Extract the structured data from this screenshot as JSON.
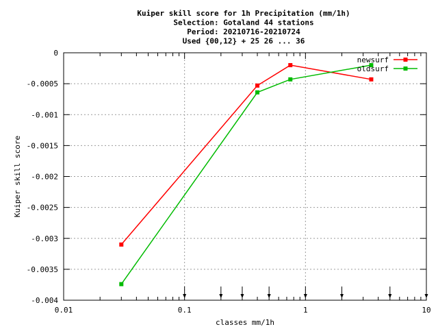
{
  "chart_data": {
    "type": "line",
    "title": [
      "Kuiper skill score  for 1h Precipitation (mm/1h)",
      "Selection: Gotaland     44 stations",
      "Period: 20210716-20210724",
      "Used {00,12} + 25 26 ... 36"
    ],
    "xlabel": "classes mm/1h",
    "ylabel": "Kuiper skill score",
    "xscale": "log",
    "xlim": [
      0.01,
      10
    ],
    "ylim": [
      -0.004,
      0
    ],
    "xticks": [
      0.01,
      0.1,
      1,
      10
    ],
    "xtick_labels": [
      "0.01",
      "0.1",
      "1",
      "10"
    ],
    "yticks": [
      0,
      -0.0005,
      -0.001,
      -0.0015,
      -0.002,
      -0.0025,
      -0.003,
      -0.0035,
      -0.004
    ],
    "ytick_labels": [
      "0",
      "-0.0005",
      "-0.001",
      "-0.0015",
      "-0.002",
      "-0.0025",
      "-0.003",
      "-0.0035",
      "-0.004"
    ],
    "grid": true,
    "legend_position": "top-right",
    "class_markers": [
      0.1,
      0.2,
      0.3,
      0.5,
      1,
      2,
      5,
      10
    ],
    "series": [
      {
        "name": "newsurf",
        "color": "#ff0000",
        "x": [
          0.03,
          0.4,
          0.75,
          3.5
        ],
        "y": [
          -0.0031,
          -0.00053,
          -0.0002,
          -0.00043
        ]
      },
      {
        "name": "oldsurf",
        "color": "#00bb00",
        "x": [
          0.03,
          0.4,
          0.75,
          3.5
        ],
        "y": [
          -0.00374,
          -0.00064,
          -0.00043,
          -0.0002
        ]
      }
    ]
  }
}
